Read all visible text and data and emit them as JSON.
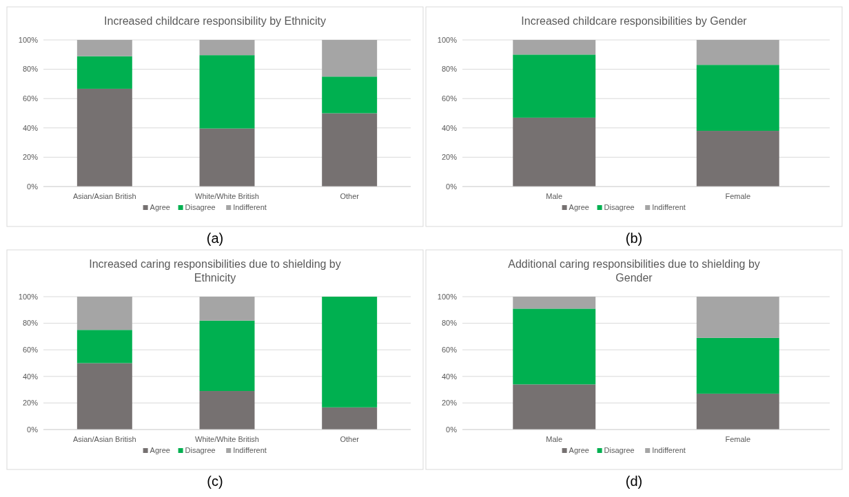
{
  "chart_data": [
    {
      "type": "bar",
      "stacked": true,
      "title": "Increased childcare responsibility by Ethnicity",
      "categories": [
        "Asian/Asian British",
        "White/White British",
        "Other"
      ],
      "series": [
        {
          "name": "Agree",
          "color": "#767171",
          "values": [
            66.7,
            39.6,
            50
          ]
        },
        {
          "name": "Disagree",
          "color": "#00b050",
          "values": [
            22.2,
            50,
            25
          ]
        },
        {
          "name": "Indifferent",
          "color": "#a5a5a5",
          "values": [
            11.1,
            10.4,
            25
          ]
        }
      ],
      "ylim": [
        0,
        100
      ],
      "yticks": [
        {
          "value": 0,
          "label": "0%"
        },
        {
          "value": 20,
          "label": "20%"
        },
        {
          "value": 40,
          "label": "40%"
        },
        {
          "value": 60,
          "label": "60%"
        },
        {
          "value": 80,
          "label": "80%"
        },
        {
          "value": 100,
          "label": "100%"
        }
      ],
      "grid": "y",
      "legend": "bottom",
      "annotations": [
        "(a)"
      ]
    },
    {
      "type": "bar",
      "stacked": true,
      "title": "Increased childcare responsibilities by Gender",
      "categories": [
        "Male",
        "Female"
      ],
      "series": [
        {
          "name": "Agree",
          "color": "#767171",
          "values": [
            47,
            38
          ]
        },
        {
          "name": "Disagree",
          "color": "#00b050",
          "values": [
            43,
            45
          ]
        },
        {
          "name": "Indifferent",
          "color": "#a5a5a5",
          "values": [
            10,
            17
          ]
        }
      ],
      "ylim": [
        0,
        100
      ],
      "yticks": [
        {
          "value": 0,
          "label": "0%"
        },
        {
          "value": 20,
          "label": "20%"
        },
        {
          "value": 40,
          "label": "40%"
        },
        {
          "value": 60,
          "label": "60%"
        },
        {
          "value": 80,
          "label": "80%"
        },
        {
          "value": 100,
          "label": "100%"
        }
      ],
      "grid": "y",
      "legend": "bottom",
      "annotations": [
        "(b)"
      ]
    },
    {
      "type": "bar",
      "stacked": true,
      "title": "Increased caring responsibilities due to shielding by Ethnicity",
      "categories": [
        "Asian/Asian British",
        "White/White British",
        "Other"
      ],
      "series": [
        {
          "name": "Agree",
          "color": "#767171",
          "values": [
            50,
            29,
            16.7
          ]
        },
        {
          "name": "Disagree",
          "color": "#00b050",
          "values": [
            25,
            53,
            83.3
          ]
        },
        {
          "name": "Indifferent",
          "color": "#a5a5a5",
          "values": [
            25,
            18,
            0
          ]
        }
      ],
      "ylim": [
        0,
        100
      ],
      "yticks": [
        {
          "value": 0,
          "label": "0%"
        },
        {
          "value": 20,
          "label": "20%"
        },
        {
          "value": 40,
          "label": "40%"
        },
        {
          "value": 60,
          "label": "60%"
        },
        {
          "value": 80,
          "label": "80%"
        },
        {
          "value": 100,
          "label": "100%"
        }
      ],
      "grid": "y",
      "legend": "bottom",
      "annotations": [
        "(c)"
      ]
    },
    {
      "type": "bar",
      "stacked": true,
      "title": "Additional caring responsibilities due to shielding by Gender",
      "categories": [
        "Male",
        "Female"
      ],
      "series": [
        {
          "name": "Agree",
          "color": "#767171",
          "values": [
            34,
            27
          ]
        },
        {
          "name": "Disagree",
          "color": "#00b050",
          "values": [
            57,
            42
          ]
        },
        {
          "name": "Indifferent",
          "color": "#a5a5a5",
          "values": [
            9,
            31
          ]
        }
      ],
      "ylim": [
        0,
        100
      ],
      "yticks": [
        {
          "value": 0,
          "label": "0%"
        },
        {
          "value": 20,
          "label": "20%"
        },
        {
          "value": 40,
          "label": "40%"
        },
        {
          "value": 60,
          "label": "60%"
        },
        {
          "value": 80,
          "label": "80%"
        },
        {
          "value": 100,
          "label": "100%"
        }
      ],
      "grid": "y",
      "legend": "bottom",
      "annotations": [
        "(d)"
      ]
    }
  ]
}
